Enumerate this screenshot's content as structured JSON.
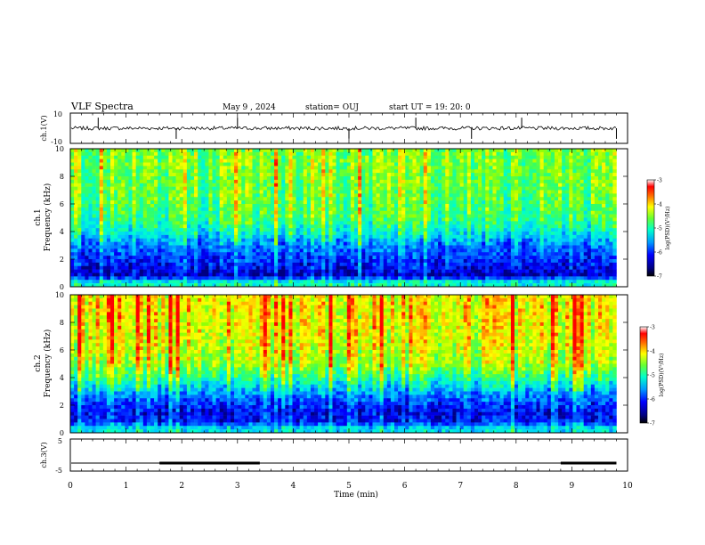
{
  "header": {
    "title": "VLF Spectra",
    "date": "May 9 , 2024",
    "station": "station= OUJ",
    "start": "start UT = 19: 20: 0"
  },
  "colors": {
    "colormap": [
      "#00007f",
      "#0000ff",
      "#0066ff",
      "#00ccff",
      "#00ffcc",
      "#33ff66",
      "#99ff00",
      "#ffff00",
      "#ff9900",
      "#ff0000",
      "#ffffff"
    ]
  },
  "chart_data": [
    {
      "type": "line",
      "id": "ch1-waveform",
      "ylabel": "ch.1(V)",
      "ylim": [
        -10,
        10
      ],
      "y_ticklabels": [
        "10",
        "-10"
      ],
      "baseline_value": 0,
      "noise_amplitude": 1.2,
      "spike_times_min": [
        0.5,
        1.9,
        3.0,
        5.0,
        6.2,
        7.2,
        8.1,
        9.8
      ]
    },
    {
      "type": "heatmap",
      "id": "ch1-spectrogram",
      "ylabel": "ch.1\nFrequency (kHz)",
      "xlim": [
        0,
        10
      ],
      "ylim": [
        0,
        10
      ],
      "y_ticks": [
        0,
        2,
        4,
        6,
        8,
        10
      ],
      "data_end_min": 9.8,
      "colorbar": {
        "label": "log(PSD)(V²/Hz)",
        "range": [
          -7,
          -3
        ],
        "ticks": [
          -3,
          -4,
          -5,
          -6,
          -7
        ]
      },
      "profile": [
        {
          "freq_khz": 0.3,
          "log_psd": -5.2
        },
        {
          "freq_khz": 0.8,
          "log_psd": -6.8
        },
        {
          "freq_khz": 1.5,
          "log_psd": -6.5
        },
        {
          "freq_khz": 2.2,
          "log_psd": -6.3
        },
        {
          "freq_khz": 3.0,
          "log_psd": -6.0
        },
        {
          "freq_khz": 4.0,
          "log_psd": -5.3
        },
        {
          "freq_khz": 5.0,
          "log_psd": -4.8
        },
        {
          "freq_khz": 7.0,
          "log_psd": -4.6
        },
        {
          "freq_khz": 9.0,
          "log_psd": -4.5
        }
      ]
    },
    {
      "type": "heatmap",
      "id": "ch2-spectrogram",
      "ylabel": "ch.2\nFrequency (kHz)",
      "xlim": [
        0,
        10
      ],
      "ylim": [
        0,
        10
      ],
      "y_ticks": [
        0,
        2,
        4,
        6,
        8,
        10
      ],
      "data_end_min": 9.8,
      "colorbar": {
        "label": "log(PSD)(V²/Hz)",
        "range": [
          -7,
          -3
        ],
        "ticks": [
          -3,
          -4,
          -5,
          -6,
          -7
        ]
      },
      "profile": [
        {
          "freq_khz": 0.3,
          "log_psd": -5.5
        },
        {
          "freq_khz": 0.8,
          "log_psd": -6.5
        },
        {
          "freq_khz": 1.5,
          "log_psd": -6.6
        },
        {
          "freq_khz": 2.2,
          "log_psd": -6.3
        },
        {
          "freq_khz": 3.0,
          "log_psd": -5.8
        },
        {
          "freq_khz": 4.0,
          "log_psd": -5.0
        },
        {
          "freq_khz": 5.0,
          "log_psd": -4.3
        },
        {
          "freq_khz": 7.0,
          "log_psd": -4.0
        },
        {
          "freq_khz": 9.0,
          "log_psd": -3.9
        }
      ]
    },
    {
      "type": "line",
      "id": "ch3-signal",
      "ylabel": "ch.3(V)",
      "xlabel": "Time (min)",
      "xlim": [
        0,
        10
      ],
      "x_ticks": [
        0,
        1,
        2,
        3,
        4,
        5,
        6,
        7,
        8,
        9,
        10
      ],
      "ylim": [
        -5,
        5
      ],
      "y_ticklabels": [
        "5",
        "-5"
      ],
      "baseline_value": -2.5,
      "thick_segments_min": [
        [
          1.6,
          3.4
        ],
        [
          8.8,
          9.8
        ]
      ]
    }
  ]
}
